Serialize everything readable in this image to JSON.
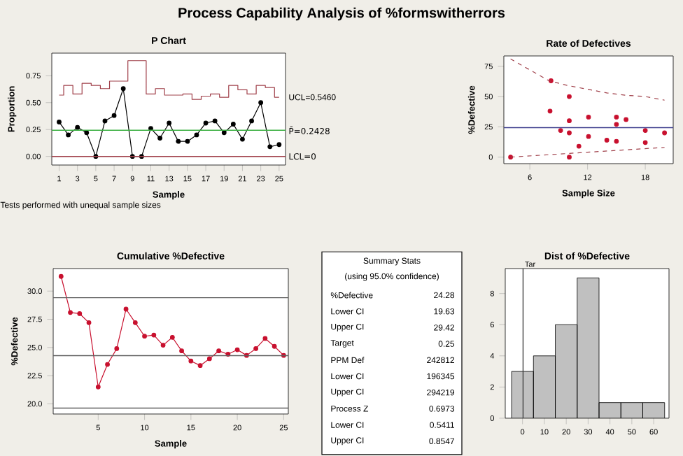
{
  "chart_data": [
    {
      "type": "other",
      "title": "Process Capability Analysis of %formswitherrors"
    },
    {
      "type": "line",
      "title": "P Chart",
      "xlabel": "Sample",
      "ylabel": "Proportion",
      "xlim": [
        0.2,
        25.7
      ],
      "ylim": [
        -0.08,
        0.96
      ],
      "xticks": [
        1,
        3,
        5,
        7,
        9,
        11,
        13,
        15,
        17,
        19,
        21,
        23,
        25
      ],
      "yticks": [
        {
          "value": 0,
          "label": "0.00"
        },
        {
          "value": 0.25,
          "label": "0.25"
        },
        {
          "value": 0.5,
          "label": "0.50"
        },
        {
          "value": 0.75,
          "label": "0.75"
        }
      ],
      "x": [
        1,
        2,
        3,
        4,
        5,
        6,
        7,
        8,
        9,
        10,
        11,
        12,
        13,
        14,
        15,
        16,
        17,
        18,
        19,
        20,
        21,
        22,
        23,
        24,
        25
      ],
      "series": [
        {
          "color": "#000000",
          "marker": "circle",
          "values": [
            0.32,
            0.2,
            0.27,
            0.22,
            0,
            0.33,
            0.38,
            0.63,
            0,
            0,
            0.26,
            0.17,
            0.31,
            0.14,
            0.14,
            0.2,
            0.31,
            0.33,
            0.22,
            0.3,
            0.16,
            0.33,
            0.5,
            0.09,
            0.11
          ]
        },
        {
          "type": "step",
          "name": "UCL=0.5460",
          "color": "#a0404a",
          "marker": "none",
          "values": [
            0.57,
            0.66,
            0.58,
            0.68,
            0.66,
            0.63,
            0.7,
            0.7,
            0.89,
            0.89,
            0.58,
            0.63,
            0.57,
            0.57,
            0.58,
            0.53,
            0.56,
            0.58,
            0.55,
            0.66,
            0.62,
            0.58,
            0.66,
            0.64,
            0.55
          ]
        }
      ],
      "ref_lines": [
        {
          "axis": "y",
          "value": 0.2428,
          "label": "P̄=0.2428",
          "color": "#3cb043"
        },
        {
          "axis": "y",
          "value": 0,
          "label": "LCL=0",
          "color": "#a0404a"
        }
      ],
      "annotations": [
        "Tests performed with unequal sample sizes"
      ]
    },
    {
      "type": "scatter",
      "title": "Rate of Defectives",
      "xlabel": "Sample Size",
      "ylabel": "%Defective",
      "xlim": [
        3.3,
        20.9
      ],
      "ylim": [
        -5.4,
        83.5
      ],
      "xticks": [
        6,
        12,
        18
      ],
      "yticks": [
        0,
        25,
        50,
        75
      ],
      "series": [
        {
          "color": "#c8102e",
          "marker": "circle",
          "x": [
            4,
            8.2,
            8.1,
            9.2,
            10.1,
            10.1,
            10.1,
            10.1,
            11.1,
            12.1,
            12.1,
            14,
            15,
            15,
            15,
            16,
            18,
            18,
            20
          ],
          "values": [
            0,
            63,
            38,
            22,
            50,
            30,
            20,
            0,
            9,
            33,
            17,
            14,
            33,
            27,
            13,
            31,
            22,
            12,
            20
          ]
        },
        {
          "type": "line",
          "color": "#a0404a",
          "marker": "none",
          "line_style": "dashed",
          "x": [
            4,
            6,
            8,
            10,
            12,
            14,
            16,
            18,
            20
          ],
          "values": [
            81,
            72,
            63,
            59,
            56,
            53,
            51,
            50,
            47
          ]
        },
        {
          "type": "line",
          "color": "#a0404a",
          "marker": "none",
          "line_style": "dashed",
          "x": [
            4,
            8,
            12,
            16,
            20
          ],
          "values": [
            0,
            2,
            4,
            6,
            8
          ]
        }
      ],
      "ref_lines": [
        {
          "axis": "y",
          "value": 24.28,
          "color": "#3c3c8c"
        }
      ]
    },
    {
      "type": "line",
      "title": "Cumulative %Defective",
      "xlabel": "Sample",
      "ylabel": "%Defective",
      "xlim": [
        0.15,
        25.5
      ],
      "ylim": [
        19.1,
        32
      ],
      "xticks": [
        5,
        10,
        15,
        20,
        25
      ],
      "yticks": [
        {
          "value": 20,
          "label": "20.0"
        },
        {
          "value": 22.5,
          "label": "22.5"
        },
        {
          "value": 25,
          "label": "25.0"
        },
        {
          "value": 27.5,
          "label": "27.5"
        },
        {
          "value": 30,
          "label": "30.0"
        }
      ],
      "x": [
        1,
        2,
        3,
        4,
        5,
        6,
        7,
        8,
        9,
        10,
        11,
        12,
        13,
        14,
        15,
        16,
        17,
        18,
        19,
        20,
        21,
        22,
        23,
        24,
        25
      ],
      "series": [
        {
          "color": "#c8102e",
          "marker": "circle",
          "values": [
            31.3,
            28.1,
            28.0,
            27.2,
            21.5,
            23.5,
            24.9,
            28.4,
            27.2,
            26.0,
            26.1,
            25.2,
            25.9,
            24.7,
            23.8,
            23.4,
            24.0,
            24.7,
            24.4,
            24.8,
            24.3,
            24.9,
            25.8,
            25.1,
            24.3
          ]
        }
      ],
      "ref_lines": [
        {
          "axis": "y",
          "value": 29.42,
          "color": "#606060"
        },
        {
          "axis": "y",
          "value": 24.28,
          "color": "#606060"
        },
        {
          "axis": "y",
          "value": 19.63,
          "color": "#606060"
        }
      ]
    },
    {
      "type": "other",
      "title": "Summary Stats",
      "subtitle": "(using 95.0% confidence)",
      "data_labels": true,
      "categories": [
        "%Defective",
        "Lower CI",
        "Upper CI",
        "Target",
        "PPM Def",
        "Lower CI",
        "Upper CI",
        "Process Z",
        "Lower CI",
        "Upper CI"
      ],
      "values": [
        24.28,
        19.63,
        29.42,
        0.25,
        242812,
        196345,
        294219,
        0.6973,
        0.5411,
        0.8547
      ]
    },
    {
      "type": "histogram",
      "title": "Dist of %Defective",
      "color": "#c0c0c0",
      "bins": [
        -5,
        5,
        15,
        25,
        35,
        45,
        55,
        65
      ],
      "values": [
        3,
        4,
        6,
        9,
        1,
        1,
        1
      ],
      "xlim": [
        -7.9,
        67
      ],
      "ylim": [
        0,
        9.6
      ],
      "xticks": [
        0,
        10,
        20,
        30,
        40,
        50,
        60
      ],
      "yticks": [
        0,
        2,
        4,
        6,
        8
      ],
      "ref_lines": [
        {
          "axis": "x",
          "value": 0.25,
          "label": "Tar",
          "color": "#404040"
        }
      ]
    }
  ]
}
